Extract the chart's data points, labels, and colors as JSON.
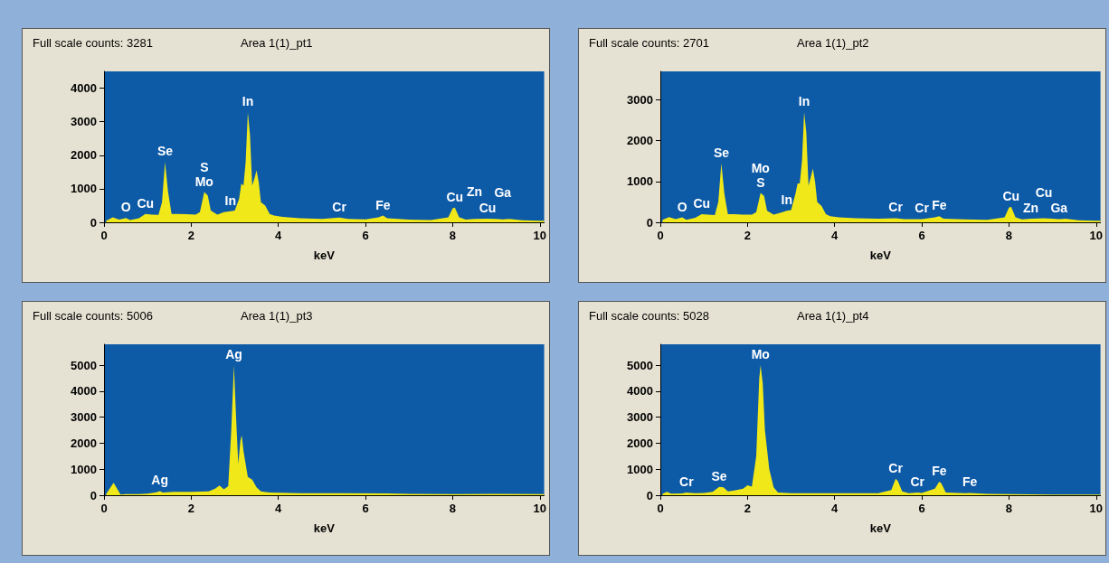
{
  "chart_data": [
    {
      "type": "area",
      "title": "Full scale counts: 3281",
      "subtitle": "Area 1(1)_pt1",
      "xlabel": "keV",
      "xlim": [
        0,
        10.1
      ],
      "xticks": [
        0,
        2,
        4,
        6,
        8,
        10
      ],
      "ylim": [
        0,
        4500
      ],
      "yticks": [
        0,
        1000,
        2000,
        3000,
        4000
      ],
      "grid": false,
      "series": [
        {
          "color": "#f0e818",
          "x": [
            0.05,
            0.2,
            0.35,
            0.5,
            0.6,
            0.8,
            0.95,
            1.1,
            1.25,
            1.33,
            1.4,
            1.47,
            1.55,
            1.7,
            1.9,
            2.1,
            2.2,
            2.3,
            2.38,
            2.45,
            2.6,
            2.75,
            2.9,
            3.0,
            3.1,
            3.15,
            3.2,
            3.25,
            3.3,
            3.35,
            3.4,
            3.45,
            3.5,
            3.55,
            3.6,
            3.7,
            3.8,
            3.9,
            4.1,
            4.5,
            5.0,
            5.4,
            5.6,
            6.0,
            6.3,
            6.4,
            6.5,
            7.0,
            7.5,
            7.9,
            8.0,
            8.05,
            8.15,
            8.3,
            8.5,
            8.8,
            9.0,
            9.15,
            9.3,
            9.6,
            10.0,
            10.1
          ],
          "values": [
            50,
            150,
            80,
            130,
            70,
            120,
            250,
            230,
            220,
            600,
            1800,
            900,
            250,
            250,
            240,
            230,
            300,
            900,
            800,
            350,
            230,
            300,
            330,
            350,
            700,
            1150,
            1100,
            1800,
            3280,
            2600,
            1100,
            1300,
            1550,
            1200,
            600,
            500,
            250,
            200,
            160,
            120,
            100,
            140,
            100,
            90,
            150,
            200,
            120,
            80,
            70,
            150,
            420,
            440,
            150,
            80,
            100,
            110,
            100,
            90,
            100,
            60,
            50,
            50
          ]
        }
      ],
      "annotations": [
        {
          "text": "O",
          "x": 0.5,
          "y": 130
        },
        {
          "text": "Cu",
          "x": 0.95,
          "y": 250
        },
        {
          "text": "Se",
          "x": 1.4,
          "y": 1800
        },
        {
          "text": "Mo",
          "x": 2.3,
          "y": 900
        },
        {
          "text": "S",
          "x": 2.3,
          "y": 900
        },
        {
          "text": "In",
          "x": 2.9,
          "y": 330
        },
        {
          "text": "In",
          "x": 3.3,
          "y": 3280
        },
        {
          "text": "Cr",
          "x": 5.4,
          "y": 140
        },
        {
          "text": "Fe",
          "x": 6.4,
          "y": 200
        },
        {
          "text": "Cu",
          "x": 8.05,
          "y": 440
        },
        {
          "text": "Cu",
          "x": 8.8,
          "y": 110
        },
        {
          "text": "Zn",
          "x": 8.5,
          "y": 100
        },
        {
          "text": "Ga",
          "x": 9.15,
          "y": 90
        }
      ]
    },
    {
      "type": "area",
      "title": "Full scale counts: 2701",
      "subtitle": "Area 1(1)_pt2",
      "xlabel": "keV",
      "xlim": [
        0,
        10.1
      ],
      "xticks": [
        0,
        2,
        4,
        6,
        8,
        10
      ],
      "ylim": [
        0,
        3700
      ],
      "yticks": [
        0,
        1000,
        2000,
        3000
      ],
      "grid": false,
      "series": [
        {
          "color": "#f0e818",
          "x": [
            0.05,
            0.2,
            0.35,
            0.5,
            0.6,
            0.8,
            0.95,
            1.1,
            1.25,
            1.33,
            1.4,
            1.47,
            1.55,
            1.7,
            1.9,
            2.1,
            2.2,
            2.3,
            2.38,
            2.45,
            2.6,
            2.75,
            2.9,
            3.0,
            3.1,
            3.15,
            3.2,
            3.25,
            3.3,
            3.35,
            3.4,
            3.45,
            3.5,
            3.55,
            3.6,
            3.7,
            3.8,
            3.9,
            4.1,
            4.5,
            5.0,
            5.4,
            5.6,
            6.0,
            6.3,
            6.4,
            6.5,
            7.0,
            7.5,
            7.9,
            8.0,
            8.05,
            8.15,
            8.3,
            8.5,
            8.8,
            9.0,
            9.15,
            9.3,
            9.6,
            10.0,
            10.1
          ],
          "values": [
            60,
            130,
            80,
            120,
            60,
            110,
            200,
            190,
            180,
            500,
            1450,
            700,
            200,
            200,
            190,
            190,
            250,
            720,
            650,
            280,
            190,
            230,
            280,
            300,
            700,
            950,
            950,
            1500,
            2700,
            2200,
            900,
            1100,
            1320,
            1000,
            500,
            400,
            200,
            150,
            120,
            100,
            90,
            100,
            80,
            80,
            120,
            150,
            90,
            70,
            60,
            120,
            360,
            380,
            120,
            70,
            90,
            100,
            90,
            80,
            90,
            50,
            40,
            40
          ]
        }
      ],
      "annotations": [
        {
          "text": "O",
          "x": 0.5,
          "y": 120
        },
        {
          "text": "Cu",
          "x": 0.95,
          "y": 200
        },
        {
          "text": "Se",
          "x": 1.4,
          "y": 1450
        },
        {
          "text": "S",
          "x": 2.3,
          "y": 720
        },
        {
          "text": "Mo",
          "x": 2.3,
          "y": 720
        },
        {
          "text": "In",
          "x": 2.9,
          "y": 280
        },
        {
          "text": "In",
          "x": 3.3,
          "y": 2700
        },
        {
          "text": "Cr",
          "x": 5.4,
          "y": 100
        },
        {
          "text": "Cr",
          "x": 6.0,
          "y": 80
        },
        {
          "text": "Fe",
          "x": 6.4,
          "y": 150
        },
        {
          "text": "Cu",
          "x": 8.05,
          "y": 380
        },
        {
          "text": "Zn",
          "x": 8.5,
          "y": 90
        },
        {
          "text": "Ga",
          "x": 9.15,
          "y": 80
        },
        {
          "text": "Cu",
          "x": 8.8,
          "y": 100
        }
      ]
    },
    {
      "type": "area",
      "title": "Full scale counts: 5006",
      "subtitle": "Area 1(1)_pt3",
      "xlabel": "keV",
      "xlim": [
        0,
        10.1
      ],
      "xticks": [
        0,
        2,
        4,
        6,
        8,
        10
      ],
      "ylim": [
        0,
        5800
      ],
      "yticks": [
        0,
        1000,
        2000,
        3000,
        4000,
        5000
      ],
      "grid": false,
      "series": [
        {
          "color": "#f0e818",
          "x": [
            0.05,
            0.15,
            0.22,
            0.3,
            0.38,
            0.5,
            0.8,
            1.0,
            1.2,
            1.28,
            1.35,
            1.6,
            2.0,
            2.4,
            2.55,
            2.65,
            2.75,
            2.85,
            2.92,
            2.98,
            3.03,
            3.08,
            3.13,
            3.16,
            3.2,
            3.3,
            3.4,
            3.5,
            3.6,
            3.8,
            4.5,
            5.5,
            6.5,
            7.0,
            8.0,
            9.0,
            10.1
          ],
          "values": [
            50,
            300,
            480,
            250,
            30,
            40,
            40,
            60,
            110,
            160,
            100,
            130,
            130,
            150,
            250,
            370,
            230,
            350,
            2500,
            5000,
            3000,
            1200,
            2100,
            2300,
            1700,
            700,
            600,
            300,
            150,
            100,
            80,
            80,
            70,
            50,
            40,
            50,
            40
          ]
        }
      ],
      "annotations": [
        {
          "text": "Ag",
          "x": 1.28,
          "y": 160
        },
        {
          "text": "Ag",
          "x": 2.98,
          "y": 5000
        }
      ]
    },
    {
      "type": "area",
      "title": "Full scale counts: 5028",
      "subtitle": "Area 1(1)_pt4",
      "xlabel": "keV",
      "xlim": [
        0,
        10.1
      ],
      "xticks": [
        0,
        2,
        4,
        6,
        8,
        10
      ],
      "ylim": [
        0,
        5800
      ],
      "yticks": [
        0,
        1000,
        2000,
        3000,
        4000,
        5000
      ],
      "grid": false,
      "series": [
        {
          "color": "#f0e818",
          "x": [
            0.05,
            0.15,
            0.25,
            0.5,
            0.6,
            0.8,
            1.0,
            1.2,
            1.35,
            1.45,
            1.55,
            1.7,
            1.9,
            2.0,
            2.1,
            2.2,
            2.27,
            2.3,
            2.35,
            2.4,
            2.5,
            2.6,
            2.7,
            3.0,
            4.0,
            5.0,
            5.3,
            5.4,
            5.45,
            5.55,
            5.7,
            5.9,
            6.0,
            6.3,
            6.4,
            6.45,
            6.55,
            7.0,
            7.1,
            7.5,
            8.0,
            9.0,
            10.1
          ],
          "values": [
            50,
            130,
            60,
            70,
            100,
            80,
            90,
            130,
            320,
            300,
            150,
            180,
            250,
            380,
            330,
            1500,
            4500,
            5000,
            4300,
            2500,
            1000,
            300,
            100,
            80,
            80,
            80,
            200,
            630,
            550,
            150,
            80,
            100,
            90,
            250,
            520,
            450,
            100,
            80,
            90,
            50,
            40,
            30,
            30
          ]
        }
      ],
      "annotations": [
        {
          "text": "Cr",
          "x": 0.6,
          "y": 100
        },
        {
          "text": "Se",
          "x": 1.35,
          "y": 320
        },
        {
          "text": "Mo",
          "x": 2.3,
          "y": 5000
        },
        {
          "text": "Cr",
          "x": 5.4,
          "y": 630
        },
        {
          "text": "Cr",
          "x": 5.9,
          "y": 100
        },
        {
          "text": "Fe",
          "x": 6.4,
          "y": 520
        },
        {
          "text": "Fe",
          "x": 7.1,
          "y": 90
        }
      ]
    }
  ]
}
